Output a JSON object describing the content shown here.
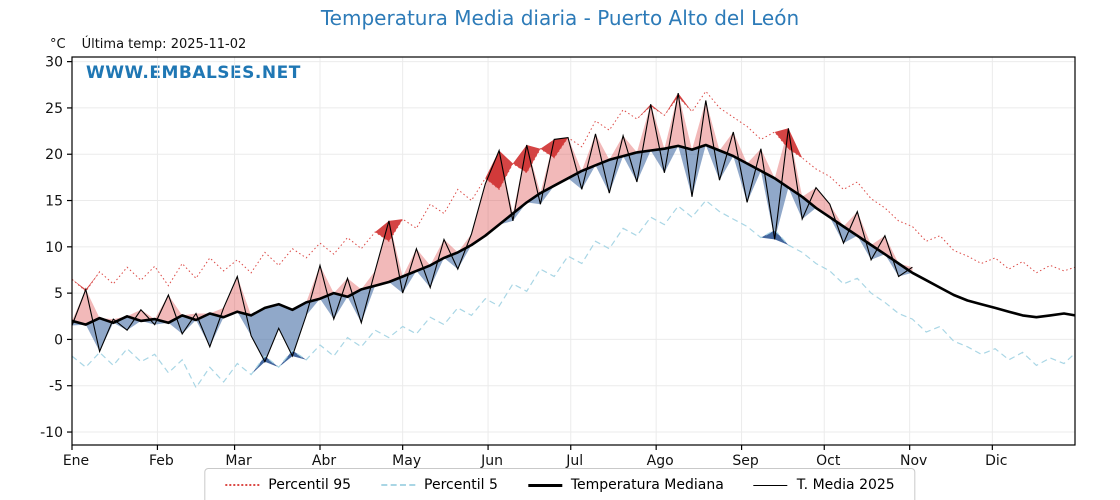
{
  "header": {
    "unit": "°C",
    "last_temp": "Última temp: 2025-11-02",
    "watermark": "WWW.EMBALSES.NET"
  },
  "colors": {
    "title": "#2d7bb8",
    "watermark": "#1f77b4",
    "p95_line": "#dc4a46",
    "p5_line": "#a9d6e5",
    "median_line": "#000000",
    "t2025_line": "#000000",
    "fill_above": "rgba(220,70,70,0.38)",
    "fill_below": "rgba(70,110,165,0.60)",
    "fill_above_extreme": "rgba(205,35,35,0.85)",
    "fill_below_extreme": "rgba(35,75,140,0.85)",
    "grid": "#ebebeb",
    "frame": "#000000"
  },
  "chart_data": {
    "type": "line",
    "title": "Temperatura Media diaria - Puerto Alto del León",
    "xlabel": "",
    "ylabel": "°C",
    "ylim": [
      -11.4,
      30.5
    ],
    "yticks": [
      -10,
      -5,
      0,
      5,
      10,
      15,
      20,
      25,
      30
    ],
    "month_labels": [
      "Ene",
      "Feb",
      "Mar",
      "Abr",
      "May",
      "Jun",
      "Jul",
      "Ago",
      "Sep",
      "Oct",
      "Nov",
      "Dic"
    ],
    "month_start_days": [
      1,
      32,
      60,
      91,
      121,
      152,
      182,
      213,
      244,
      274,
      305,
      335
    ],
    "legend": [
      "Percentil 95",
      "Percentil 5",
      "Temperatura Mediana",
      "T. Media 2025"
    ],
    "legend_position": "bottom",
    "grid": true,
    "x_days": [
      1,
      6,
      11,
      16,
      21,
      26,
      31,
      36,
      41,
      46,
      51,
      56,
      61,
      66,
      71,
      76,
      81,
      86,
      91,
      96,
      101,
      106,
      111,
      116,
      121,
      126,
      131,
      136,
      141,
      146,
      151,
      156,
      161,
      166,
      171,
      176,
      181,
      186,
      191,
      196,
      201,
      206,
      211,
      216,
      221,
      226,
      231,
      236,
      241,
      246,
      251,
      256,
      261,
      266,
      271,
      276,
      281,
      286,
      291,
      296,
      301,
      306,
      311,
      316,
      321,
      326,
      331,
      336,
      341,
      346,
      351,
      356,
      361,
      365
    ],
    "series": [
      {
        "name": "Percentil 95",
        "values": [
          6.5,
          5.2,
          7.3,
          6.0,
          7.8,
          6.4,
          7.9,
          5.8,
          8.2,
          6.6,
          8.8,
          7.4,
          8.6,
          7.2,
          9.4,
          8.0,
          9.8,
          8.8,
          10.4,
          9.2,
          11.0,
          9.8,
          11.6,
          10.6,
          13.0,
          12.0,
          14.6,
          13.6,
          16.2,
          15.0,
          17.4,
          16.2,
          19.0,
          18.0,
          20.6,
          19.6,
          21.8,
          20.8,
          23.6,
          22.6,
          24.8,
          23.8,
          25.2,
          24.2,
          26.2,
          24.6,
          26.8,
          25.0,
          24.0,
          23.0,
          21.6,
          22.4,
          20.6,
          19.6,
          18.4,
          17.6,
          16.2,
          17.0,
          15.2,
          14.2,
          12.8,
          12.2,
          10.6,
          11.2,
          9.6,
          9.0,
          8.2,
          8.8,
          7.6,
          8.4,
          7.2,
          8.0,
          7.4,
          7.8
        ]
      },
      {
        "name": "Percentil 5",
        "values": [
          -1.8,
          -3.0,
          -1.4,
          -2.8,
          -1.0,
          -2.4,
          -1.6,
          -3.6,
          -2.2,
          -5.2,
          -3.0,
          -4.6,
          -2.6,
          -3.8,
          -1.8,
          -3.0,
          -1.2,
          -2.2,
          -0.6,
          -1.8,
          0.2,
          -0.8,
          1.0,
          0.2,
          1.4,
          0.6,
          2.4,
          1.6,
          3.4,
          2.6,
          4.4,
          3.6,
          6.0,
          5.2,
          7.6,
          6.8,
          9.0,
          8.2,
          10.6,
          9.8,
          12.0,
          11.2,
          13.2,
          12.4,
          14.4,
          13.2,
          15.0,
          13.8,
          13.0,
          12.2,
          11.0,
          11.8,
          10.2,
          9.4,
          8.2,
          7.4,
          6.0,
          6.6,
          5.0,
          4.0,
          2.8,
          2.2,
          0.8,
          1.4,
          -0.2,
          -0.8,
          -1.6,
          -1.0,
          -2.2,
          -1.4,
          -2.8,
          -2.0,
          -2.6,
          -1.5
        ]
      },
      {
        "name": "Temperatura Mediana",
        "values": [
          2.0,
          1.6,
          2.3,
          1.8,
          2.5,
          2.0,
          2.2,
          1.8,
          2.6,
          2.1,
          2.8,
          2.4,
          3.0,
          2.6,
          3.4,
          3.8,
          3.2,
          4.0,
          4.4,
          5.0,
          4.6,
          5.4,
          5.8,
          6.2,
          6.8,
          7.4,
          8.0,
          8.8,
          9.4,
          10.2,
          11.2,
          12.4,
          13.6,
          14.8,
          15.8,
          16.6,
          17.4,
          18.2,
          18.8,
          19.4,
          19.8,
          20.2,
          20.4,
          20.6,
          20.9,
          20.5,
          21.0,
          20.4,
          19.8,
          19.0,
          18.2,
          17.4,
          16.4,
          15.4,
          14.2,
          13.2,
          12.2,
          11.2,
          10.2,
          9.2,
          8.2,
          7.2,
          6.4,
          5.6,
          4.8,
          4.2,
          3.8,
          3.4,
          3.0,
          2.6,
          2.4,
          2.6,
          2.8,
          2.6
        ]
      },
      {
        "name": "T. Media 2025",
        "values": [
          1.5,
          5.4,
          -1.3,
          2.2,
          1.0,
          3.2,
          1.6,
          4.8,
          0.6,
          2.8,
          -0.8,
          3.4,
          6.8,
          0.4,
          -2.4,
          1.2,
          -1.8,
          2.6,
          8.0,
          2.2,
          6.6,
          1.8,
          7.4,
          12.8,
          5.0,
          9.8,
          5.6,
          10.8,
          7.6,
          11.4,
          16.8,
          20.4,
          12.8,
          21.0,
          14.6,
          21.6,
          21.8,
          16.2,
          22.2,
          15.8,
          22.0,
          17.0,
          25.4,
          18.0,
          26.6,
          15.4,
          25.8,
          17.2,
          22.4,
          14.8,
          20.6,
          10.8,
          22.8,
          13.0,
          16.4,
          14.6,
          10.4,
          13.8,
          8.6,
          11.2,
          6.8,
          7.8
        ]
      }
    ]
  }
}
